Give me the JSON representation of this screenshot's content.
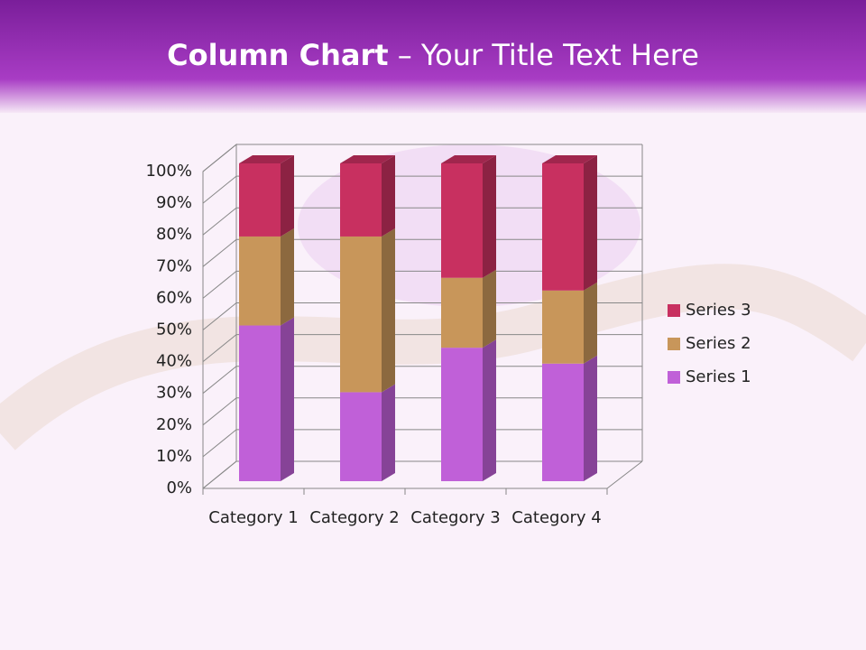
{
  "header": {
    "title": "Column Chart",
    "subtitle": "– Your Title Text Here"
  },
  "chart_data": {
    "type": "bar",
    "stacked": true,
    "categories": [
      "Category 1",
      "Category 2",
      "Category 3",
      "Category 4"
    ],
    "series": [
      {
        "name": "Series 1",
        "color": "#c060d8",
        "values": [
          49,
          28,
          42,
          37
        ]
      },
      {
        "name": "Series 2",
        "color": "#c8965a",
        "values": [
          28,
          49,
          22,
          23
        ]
      },
      {
        "name": "Series 3",
        "color": "#c83060",
        "values": [
          23,
          23,
          36,
          40
        ]
      }
    ],
    "ylim": [
      0,
      100
    ],
    "yticks": [
      {
        "value": 0,
        "label": "0%"
      },
      {
        "value": 10,
        "label": "10%"
      },
      {
        "value": 20,
        "label": "20%"
      },
      {
        "value": 30,
        "label": "30%"
      },
      {
        "value": 40,
        "label": "40%"
      },
      {
        "value": 50,
        "label": "50%"
      },
      {
        "value": 60,
        "label": "60%"
      },
      {
        "value": 70,
        "label": "70%"
      },
      {
        "value": 80,
        "label": "80%"
      },
      {
        "value": 90,
        "label": "90%"
      },
      {
        "value": 100,
        "label": "100%"
      }
    ],
    "grid": true,
    "legend": "right"
  }
}
